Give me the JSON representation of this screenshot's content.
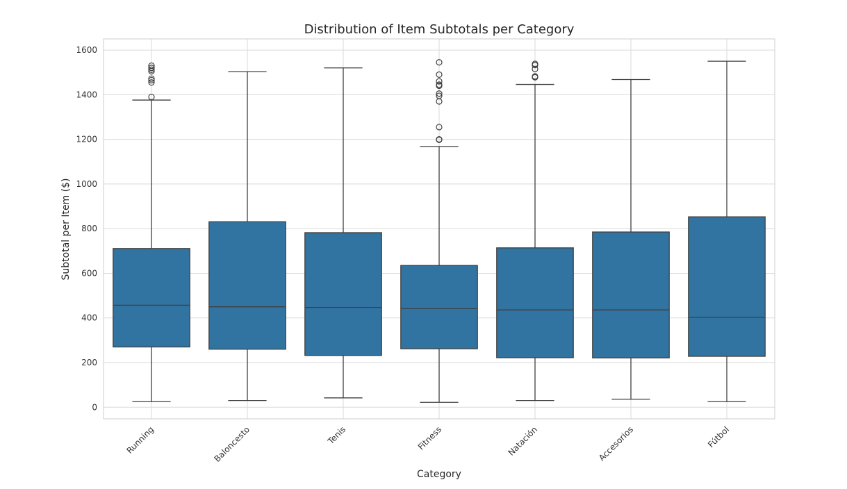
{
  "chart_data": {
    "type": "boxplot",
    "title": "Distribution of Item Subtotals per Category",
    "xlabel": "Category",
    "ylabel": "Subtotal per Item ($)",
    "ylim": [
      -52,
      1650
    ],
    "yticks": [
      0,
      200,
      400,
      600,
      800,
      1000,
      1200,
      1400,
      1600
    ],
    "grid": true,
    "box_color": "#3274a1",
    "categories": [
      "Running",
      "Baloncesto",
      "Tenis",
      "Fitness",
      "Natación",
      "Accesorios",
      "Fútbol"
    ],
    "boxes": [
      {
        "category": "Running",
        "whisker_low": 25,
        "q1": 270,
        "median": 457,
        "q3": 711,
        "whisker_high": 1376,
        "outliers": [
          1390,
          1455,
          1465,
          1472,
          1505,
          1512,
          1520,
          1530
        ]
      },
      {
        "category": "Baloncesto",
        "whisker_low": 30,
        "q1": 260,
        "median": 450,
        "q3": 831,
        "whisker_high": 1503,
        "outliers": []
      },
      {
        "category": "Tenis",
        "whisker_low": 42,
        "q1": 232,
        "median": 447,
        "q3": 782,
        "whisker_high": 1520,
        "outliers": []
      },
      {
        "category": "Fitness",
        "whisker_low": 22,
        "q1": 262,
        "median": 442,
        "q3": 635,
        "whisker_high": 1168,
        "outliers": [
          1198,
          1200,
          1255,
          1370,
          1395,
          1405,
          1440,
          1445,
          1460,
          1490,
          1545
        ]
      },
      {
        "category": "Natación",
        "whisker_low": 30,
        "q1": 222,
        "median": 436,
        "q3": 714,
        "whisker_high": 1446,
        "outliers": [
          1478,
          1482,
          1515,
          1533,
          1538
        ]
      },
      {
        "category": "Accesorios",
        "whisker_low": 36,
        "q1": 221,
        "median": 436,
        "q3": 785,
        "whisker_high": 1468,
        "outliers": []
      },
      {
        "category": "Fútbol",
        "whisker_low": 25,
        "q1": 228,
        "median": 403,
        "q3": 853,
        "whisker_high": 1550,
        "outliers": []
      }
    ]
  }
}
